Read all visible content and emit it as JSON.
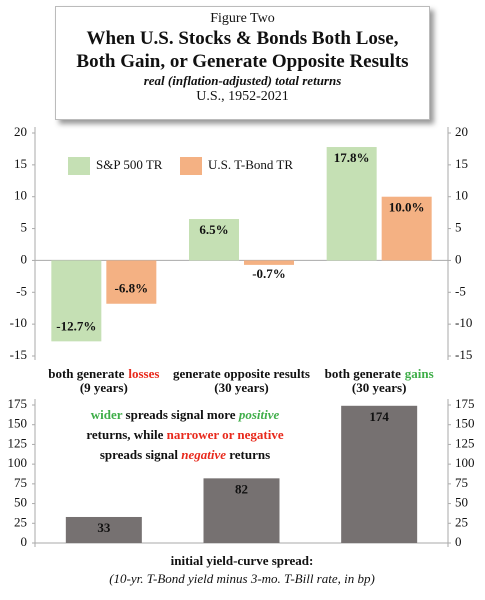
{
  "chart_data": [
    {
      "type": "bar",
      "figure_label": "Figure Two",
      "title": "When U.S. Stocks & Bonds Both Lose,\nBoth Gain, or Generate Opposite Results",
      "subtitle": "real (inflation-adjusted) total returns",
      "caption": "U.S., 1952-2021",
      "categories": [
        {
          "text": [
            "both generate",
            "losses"
          ],
          "emphasis_color": "#e8291c",
          "note": "(9 years)"
        },
        {
          "text": [
            "generate opposite results"
          ],
          "note": "(30 years)"
        },
        {
          "text": [
            "both generate",
            "gains"
          ],
          "emphasis_color": "#3fae49",
          "note": "(30 years)"
        }
      ],
      "series": [
        {
          "name": "S&P 500 TR",
          "color": "#c5e0b4",
          "values": [
            -12.7,
            6.5,
            17.8
          ],
          "value_labels": [
            "-12.7%",
            "6.5%",
            "17.8%"
          ]
        },
        {
          "name": "U.S. T-Bond TR",
          "color": "#f4b183",
          "values": [
            -6.8,
            -0.7,
            10.0
          ],
          "value_labels": [
            "-6.8%",
            "-0.7%",
            "10.0%"
          ]
        }
      ],
      "negative_label_color": "#e8291c",
      "ylim": [
        -15,
        20
      ],
      "yticks": [
        -15,
        -10,
        -5,
        0,
        5,
        10,
        15,
        20
      ],
      "y2lim": [
        -15,
        20
      ],
      "y2ticks": [
        -15,
        -10,
        -5,
        0,
        5,
        10,
        15,
        20
      ],
      "legend": "upper-left"
    },
    {
      "type": "bar",
      "categories": [
        null,
        null,
        null
      ],
      "values": [
        33,
        82,
        174
      ],
      "color": "#767171",
      "value_label_color": "#ffffff",
      "ylim": [
        0,
        175
      ],
      "yticks": [
        0,
        25,
        50,
        75,
        100,
        125,
        150,
        175
      ],
      "y2lim": [
        0,
        175
      ],
      "y2ticks": [
        0,
        25,
        50,
        75,
        100,
        125,
        150,
        175
      ],
      "xlabel": "initial yield-curve spread:",
      "xlabel_note": "(10-yr. T-Bond yield minus 3-mo. T-Bill rate, in bp)",
      "annotation": [
        [
          {
            "text": "wider",
            "color": "#3fae49"
          },
          {
            "text": " spreads signal more "
          },
          {
            "text": "positive",
            "color": "#3fae49",
            "italic": true
          }
        ],
        [
          {
            "text": "returns, while "
          },
          {
            "text": "narrower or negative",
            "color": "#e8291c"
          }
        ],
        [
          {
            "text": "spreads signal "
          },
          {
            "text": "negative",
            "color": "#e8291c",
            "italic": true
          },
          {
            "text": " returns"
          }
        ]
      ]
    }
  ]
}
